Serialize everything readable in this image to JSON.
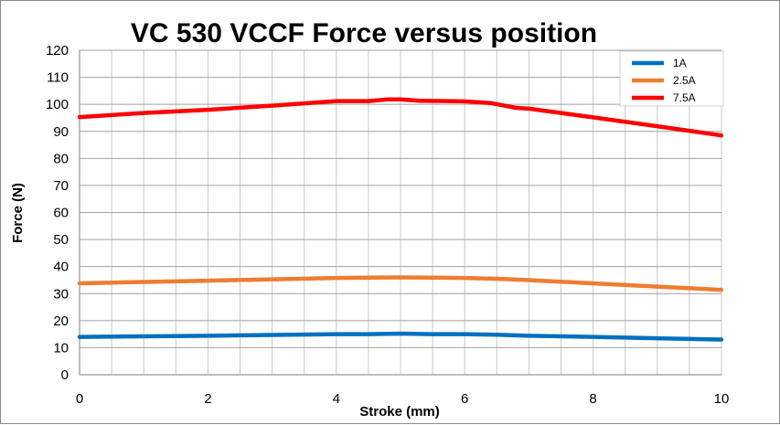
{
  "chart_data": {
    "type": "line",
    "title": "VC 530 VCCF Force versus position",
    "xlabel": "Stroke (mm)",
    "ylabel": "Force (N)",
    "xlim": [
      0,
      10
    ],
    "ylim": [
      0,
      120
    ],
    "x_ticks": [
      0,
      2,
      4,
      6,
      8,
      10
    ],
    "y_ticks": [
      0,
      10,
      20,
      30,
      40,
      50,
      60,
      70,
      80,
      90,
      100,
      110,
      120
    ],
    "grid": true,
    "legend_position": "top-right",
    "series": [
      {
        "name": "1A",
        "color": "#0070C0",
        "x": [
          0,
          1,
          2,
          3,
          4,
          4.5,
          5,
          5.5,
          6,
          6.5,
          7,
          8,
          9,
          10
        ],
        "y": [
          14,
          14.2,
          14.4,
          14.7,
          15,
          15,
          15.2,
          15,
          15,
          14.8,
          14.4,
          14,
          13.5,
          13
        ]
      },
      {
        "name": "2.5A",
        "color": "#ED7D31",
        "x": [
          0,
          1,
          2,
          3,
          4,
          4.5,
          5,
          5.5,
          6,
          6.5,
          7,
          8,
          9,
          10
        ],
        "y": [
          33.8,
          34.3,
          34.8,
          35.3,
          35.8,
          35.9,
          36,
          35.9,
          35.8,
          35.5,
          35,
          33.8,
          32.6,
          31.4
        ]
      },
      {
        "name": "7.5A",
        "color": "#FF0000",
        "x": [
          0,
          1,
          2,
          3,
          4,
          4.5,
          4.8,
          5,
          5.3,
          6,
          6.4,
          6.8,
          7,
          8,
          9,
          10
        ],
        "y": [
          95.3,
          96.8,
          98,
          99.5,
          101.2,
          101.2,
          101.8,
          101.8,
          101.3,
          101.1,
          100.5,
          98.7,
          98.4,
          95.2,
          91.9,
          88.5
        ]
      }
    ]
  }
}
